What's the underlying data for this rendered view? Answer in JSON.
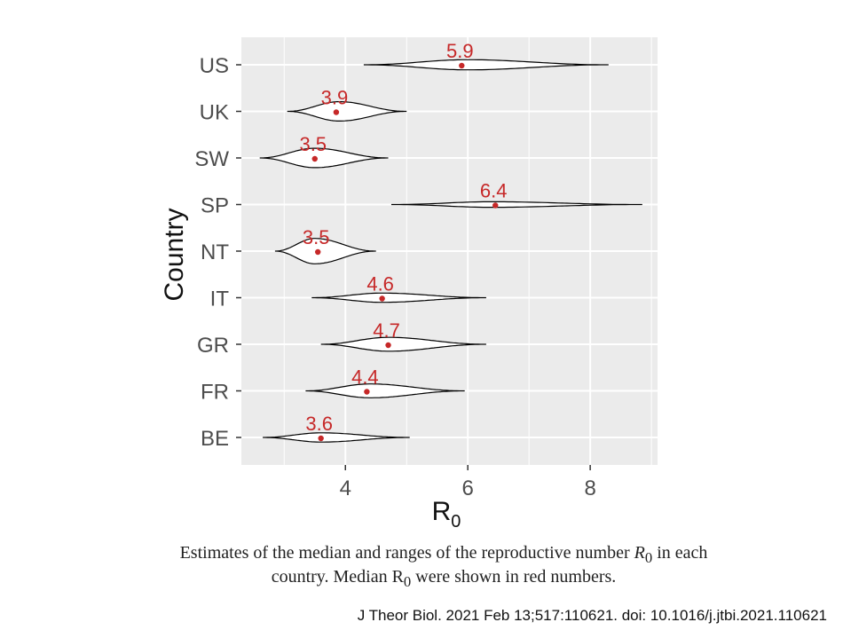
{
  "chart_data": {
    "type": "violin",
    "xlabel": "R",
    "xlabel_subscript": "0",
    "ylabel": "Country",
    "xlim": [
      2.3,
      9.1
    ],
    "xticks": [
      4,
      6,
      8
    ],
    "x_tick_labels": [
      "4",
      "6",
      "8"
    ],
    "grid": true,
    "categories": [
      "US",
      "UK",
      "SW",
      "SP",
      "NT",
      "IT",
      "GR",
      "FR",
      "BE"
    ],
    "series": [
      {
        "country": "US",
        "median": 5.9,
        "median_label": "5.9",
        "min": 4.3,
        "max": 8.3,
        "peak": 6.0,
        "half_width": 0.22
      },
      {
        "country": "UK",
        "median": 3.85,
        "median_label": "3.9",
        "min": 3.05,
        "max": 5.0,
        "peak": 3.9,
        "half_width": 0.42
      },
      {
        "country": "SW",
        "median": 3.5,
        "median_label": "3.5",
        "min": 2.6,
        "max": 4.7,
        "peak": 3.5,
        "half_width": 0.42
      },
      {
        "country": "SP",
        "median": 6.45,
        "median_label": "6.4",
        "min": 4.75,
        "max": 8.85,
        "peak": 6.4,
        "half_width": 0.12
      },
      {
        "country": "NT",
        "median": 3.55,
        "median_label": "3.5",
        "min": 2.85,
        "max": 4.5,
        "peak": 3.5,
        "half_width": 0.55
      },
      {
        "country": "IT",
        "median": 4.6,
        "median_label": "4.6",
        "min": 3.45,
        "max": 6.3,
        "peak": 4.6,
        "half_width": 0.2
      },
      {
        "country": "GR",
        "median": 4.7,
        "median_label": "4.7",
        "min": 3.6,
        "max": 6.3,
        "peak": 4.7,
        "half_width": 0.3
      },
      {
        "country": "FR",
        "median": 4.35,
        "median_label": "4.4",
        "min": 3.35,
        "max": 5.95,
        "peak": 4.4,
        "half_width": 0.3
      },
      {
        "country": "BE",
        "median": 3.6,
        "median_label": "3.6",
        "min": 2.65,
        "max": 5.05,
        "peak": 3.6,
        "half_width": 0.2
      }
    ]
  },
  "caption": {
    "line1_prefix": "Estimates of the median and ranges of the reproductive number ",
    "line1_symbol": "R",
    "line1_subscript": "0",
    "line1_suffix": " in each",
    "line2_prefix": "country. Median R",
    "line2_subscript": "0",
    "line2_suffix": " were shown in red numbers."
  },
  "citation": "J Theor Biol. 2021 Feb 13;517:110621. doi: 10.1016/j.jtbi.2021.110621",
  "colors": {
    "panel_bg": "#ebebeb",
    "grid": "#ffffff",
    "median": "#c62828",
    "outline": "#000000",
    "violin_fill": "#ffffff"
  }
}
